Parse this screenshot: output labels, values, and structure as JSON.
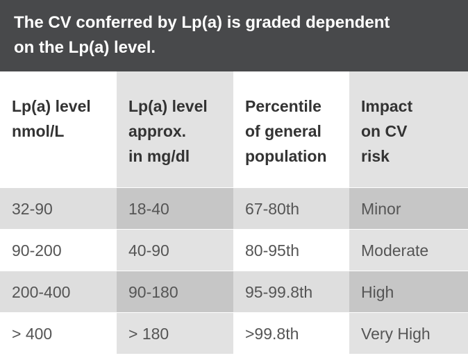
{
  "banner": {
    "line1": "The CV conferred by Lp(a) is graded dependent",
    "line2": "on the Lp(a) level."
  },
  "headers": [
    [
      "Lp(a) level",
      "nmol/L"
    ],
    [
      "Lp(a) level",
      "approx.",
      "in mg/dl"
    ],
    [
      "Percentile",
      "of general",
      "population"
    ],
    [
      "Impact",
      "on CV",
      "risk"
    ]
  ],
  "rows": [
    [
      "32-90",
      "18-40",
      "67-80th",
      "Minor"
    ],
    [
      "90-200",
      "40-90",
      "80-95th",
      "Moderate"
    ],
    [
      "200-400",
      "90-180",
      "95-99.8th",
      "High"
    ],
    [
      "> 400",
      "> 180",
      ">99.8th",
      "Very High"
    ]
  ],
  "colors": {
    "banner_bg": "#48494b",
    "banner_text": "#ffffff",
    "row_shade_dark": "#c6c6c6",
    "row_shade_mid": "#dedede",
    "header_shade": "#e2e2e2"
  }
}
